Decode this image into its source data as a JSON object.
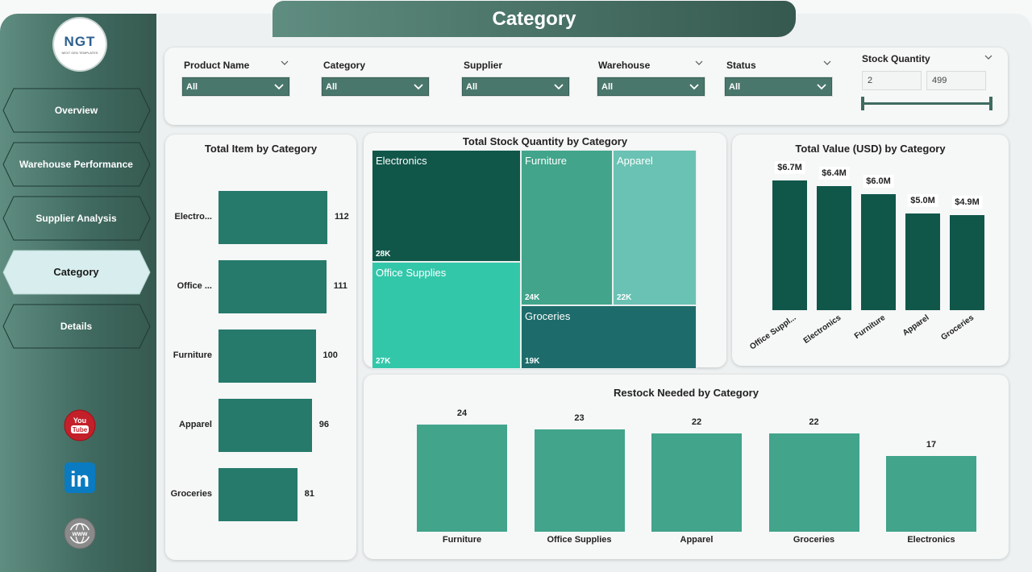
{
  "page": {
    "title": "Category"
  },
  "logo": {
    "text": "NGT",
    "tagline": "NEXT GEN TEMPLATES"
  },
  "nav": {
    "items": [
      {
        "label": "Overview"
      },
      {
        "label": "Warehouse Performance"
      },
      {
        "label": "Supplier Analysis"
      },
      {
        "label": "Category",
        "active": true
      },
      {
        "label": "Details"
      }
    ]
  },
  "social": {
    "youtube_top": "You",
    "youtube_bottom": "Tube",
    "linkedin": "in",
    "web": "www"
  },
  "filters": {
    "product_name": {
      "label": "Product Name",
      "value": "All"
    },
    "category": {
      "label": "Category",
      "value": "All"
    },
    "supplier": {
      "label": "Supplier",
      "value": "All"
    },
    "warehouse": {
      "label": "Warehouse",
      "value": "All"
    },
    "status": {
      "label": "Status",
      "value": "All"
    },
    "stock_quantity": {
      "label": "Stock Quantity",
      "min": "2",
      "max": "499"
    }
  },
  "chart_data": [
    {
      "type": "bar",
      "orientation": "horizontal",
      "title": "Total Item by Category",
      "categories": [
        "Electro...",
        "Office ...",
        "Furniture",
        "Apparel",
        "Groceries"
      ],
      "values": [
        112,
        111,
        100,
        96,
        81
      ]
    },
    {
      "type": "treemap",
      "title": "Total Stock Quantity by Category",
      "categories": [
        "Electronics",
        "Office Supplies",
        "Furniture",
        "Apparel",
        "Groceries"
      ],
      "labels": [
        "28K",
        "27K",
        "24K",
        "22K",
        "19K"
      ],
      "values": [
        28,
        27,
        24,
        22,
        19
      ]
    },
    {
      "type": "bar",
      "title": "Total Value (USD) by Category",
      "categories": [
        "Office Suppl...",
        "Electronics",
        "Furniture",
        "Apparel",
        "Groceries"
      ],
      "labels": [
        "$6.7M",
        "$6.4M",
        "$6.0M",
        "$5.0M",
        "$4.9M"
      ],
      "values": [
        6.7,
        6.4,
        6.0,
        5.0,
        4.9
      ],
      "ylim": [
        0,
        8
      ]
    },
    {
      "type": "bar",
      "title": "Restock Needed by Category",
      "categories": [
        "Furniture",
        "Office Supplies",
        "Apparel",
        "Groceries",
        "Electronics"
      ],
      "values": [
        24,
        23,
        22,
        22,
        17
      ]
    }
  ]
}
